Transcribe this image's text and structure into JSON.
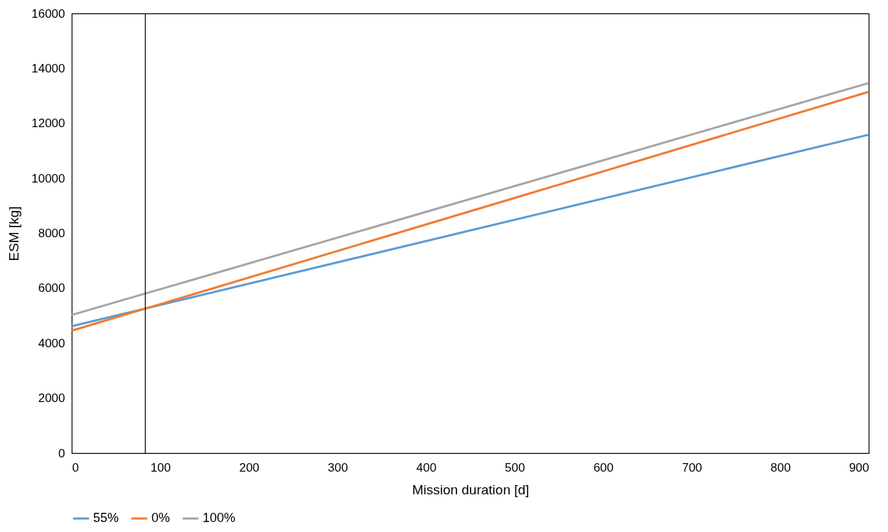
{
  "chart_data": {
    "type": "line",
    "xlabel": "Mission duration [d]",
    "ylabel": "ESM [kg]",
    "xlim": [
      0,
      900
    ],
    "xticks": [
      0,
      100,
      200,
      300,
      400,
      500,
      600,
      700,
      800,
      900
    ],
    "ylim": [
      0,
      16000
    ],
    "yticks": [
      0,
      2000,
      4000,
      6000,
      8000,
      10000,
      12000,
      14000,
      16000
    ],
    "x": [
      0,
      900
    ],
    "series": [
      {
        "name": "55%",
        "color": "#5b9bd5",
        "values": [
          4620,
          11590
        ]
      },
      {
        "name": "0%",
        "color": "#ed7d31",
        "values": [
          4460,
          13150
        ]
      },
      {
        "name": "100%",
        "color": "#a5a5a5",
        "values": [
          5030,
          13470
        ]
      }
    ],
    "ref_lines": [
      {
        "axis": "x",
        "value": 83,
        "color": "#000000"
      }
    ],
    "grid": false,
    "legend": "bottom",
    "marker": "none",
    "line_style": "solid"
  }
}
